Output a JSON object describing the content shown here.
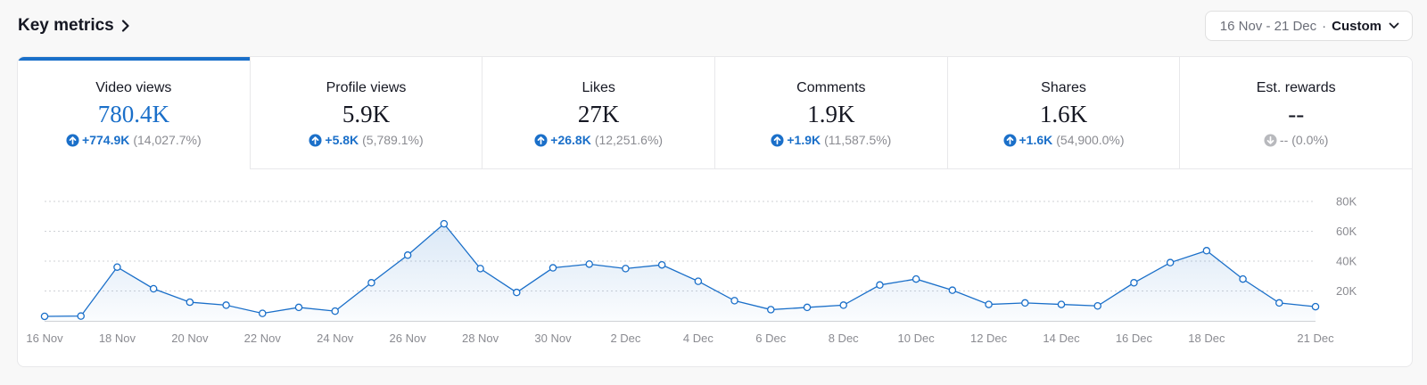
{
  "header": {
    "title": "Key metrics",
    "date_range": "16 Nov - 21 Dec",
    "date_separator": "·",
    "date_mode": "Custom"
  },
  "colors": {
    "accent": "#1a6fc9",
    "muted": "#8a8b91",
    "text": "#161823"
  },
  "tabs": [
    {
      "label": "Video views",
      "value": "780.4K",
      "delta": "+774.9K",
      "pct": "(14,027.7%)",
      "direction": "up",
      "active": true
    },
    {
      "label": "Profile views",
      "value": "5.9K",
      "delta": "+5.8K",
      "pct": "(5,789.1%)",
      "direction": "up",
      "active": false
    },
    {
      "label": "Likes",
      "value": "27K",
      "delta": "+26.8K",
      "pct": "(12,251.6%)",
      "direction": "up",
      "active": false
    },
    {
      "label": "Comments",
      "value": "1.9K",
      "delta": "+1.9K",
      "pct": "(11,587.5%)",
      "direction": "up",
      "active": false
    },
    {
      "label": "Shares",
      "value": "1.6K",
      "delta": "+1.6K",
      "pct": "(54,900.0%)",
      "direction": "up",
      "active": false
    },
    {
      "label": "Est. rewards",
      "value": "--",
      "delta": "--",
      "pct": "(0.0%)",
      "direction": "neutral",
      "active": false
    }
  ],
  "chart_data": {
    "type": "area",
    "series_name": "Video views",
    "ylim": [
      0,
      80000
    ],
    "y_ticks": [
      20000,
      40000,
      60000,
      80000
    ],
    "y_tick_labels": [
      "20K",
      "40K",
      "60K",
      "80K"
    ],
    "x_tick_labels": [
      {
        "index": 0,
        "label": "16 Nov"
      },
      {
        "index": 2,
        "label": "18 Nov"
      },
      {
        "index": 4,
        "label": "20 Nov"
      },
      {
        "index": 6,
        "label": "22 Nov"
      },
      {
        "index": 8,
        "label": "24 Nov"
      },
      {
        "index": 10,
        "label": "26 Nov"
      },
      {
        "index": 12,
        "label": "28 Nov"
      },
      {
        "index": 14,
        "label": "30 Nov"
      },
      {
        "index": 16,
        "label": "2 Dec"
      },
      {
        "index": 18,
        "label": "4 Dec"
      },
      {
        "index": 20,
        "label": "6 Dec"
      },
      {
        "index": 22,
        "label": "8 Dec"
      },
      {
        "index": 24,
        "label": "10 Dec"
      },
      {
        "index": 26,
        "label": "12 Dec"
      },
      {
        "index": 28,
        "label": "14 Dec"
      },
      {
        "index": 30,
        "label": "16 Dec"
      },
      {
        "index": 32,
        "label": "18 Dec"
      },
      {
        "index": 35,
        "label": "21 Dec"
      }
    ],
    "values": [
      3000,
      3200,
      36000,
      21500,
      12500,
      10500,
      5000,
      9000,
      6500,
      25500,
      44000,
      65000,
      35000,
      19000,
      35500,
      38000,
      35000,
      37500,
      26500,
      13500,
      7500,
      9000,
      10500,
      24000,
      28000,
      20500,
      11000,
      12000,
      11000,
      10000,
      25500,
      39000,
      47000,
      28000,
      12000,
      9500
    ],
    "grid": true,
    "legend": "none"
  }
}
